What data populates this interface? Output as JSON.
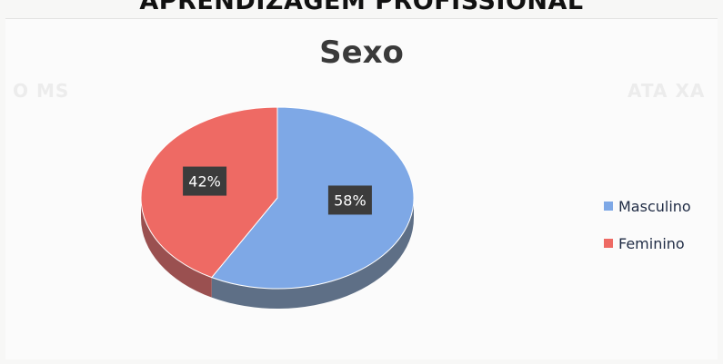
{
  "page": {
    "heading": "APRENDIZAGEM PROFISSIONAL"
  },
  "chart_data": {
    "type": "pie",
    "title": "Sexo",
    "categories": [
      "Masculino",
      "Feminino"
    ],
    "values": [
      58,
      42
    ],
    "data_labels": [
      "58%",
      "42%"
    ],
    "colors": [
      "#7ea8e6",
      "#ee6a64"
    ],
    "side_colors": [
      "#5e6f86",
      "#9a5050"
    ],
    "label_box_color": "#3c3c3c",
    "legend": {
      "placement": "right",
      "entries": [
        {
          "label": "Masculino",
          "color": "#7ea8e6"
        },
        {
          "label": "Feminino",
          "color": "#ee6a64"
        }
      ]
    }
  }
}
